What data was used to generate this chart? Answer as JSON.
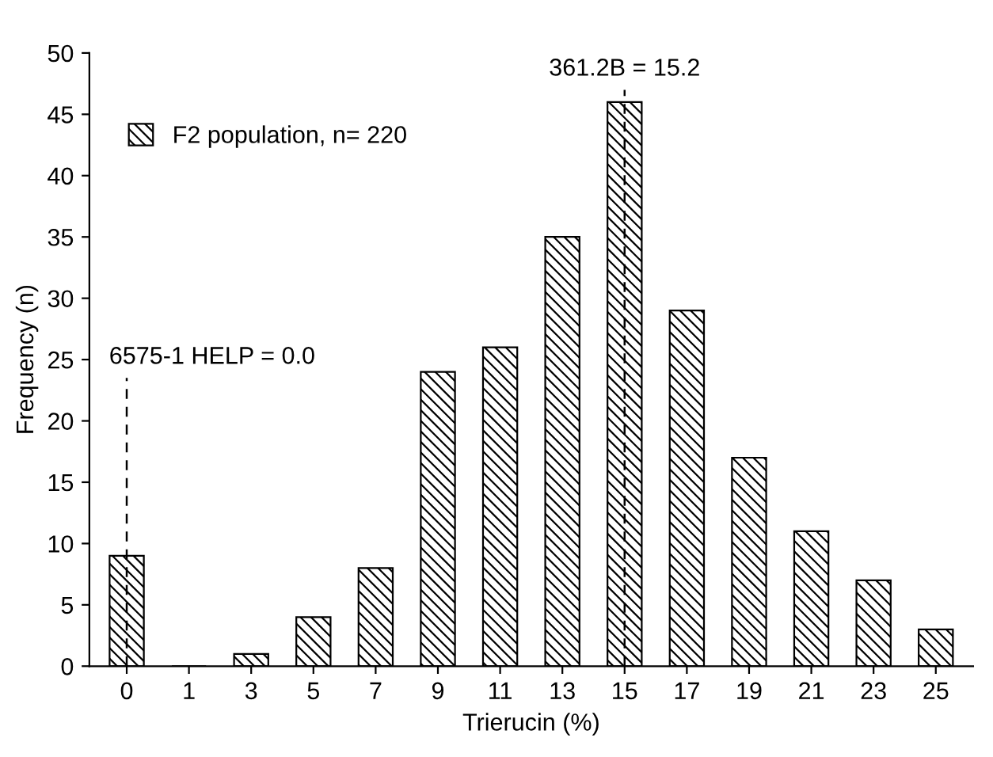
{
  "chart_data": {
    "type": "bar",
    "xlabel": "Trierucin (%)",
    "ylabel": "Frequency (n)",
    "categories": [
      "0",
      "1",
      "3",
      "5",
      "7",
      "9",
      "11",
      "13",
      "15",
      "17",
      "19",
      "21",
      "23",
      "25"
    ],
    "series": [
      {
        "name": "F2 population, n= 220",
        "color": "#000000",
        "values": [
          9,
          0,
          1,
          4,
          8,
          24,
          26,
          35,
          46,
          29,
          17,
          11,
          7,
          3
        ]
      }
    ],
    "ylim": [
      0,
      50
    ],
    "yticks": [
      0,
      5,
      10,
      15,
      20,
      25,
      30,
      35,
      40,
      45,
      50
    ],
    "ref_lines": [
      {
        "axis": "x",
        "value": "0",
        "label": "6575-1 HELP = 0.0",
        "line_style": "dashed"
      },
      {
        "axis": "x",
        "value": "15",
        "label": "361.2B = 15.2",
        "line_style": "dashed"
      }
    ],
    "legend": "top left",
    "grid": false
  }
}
